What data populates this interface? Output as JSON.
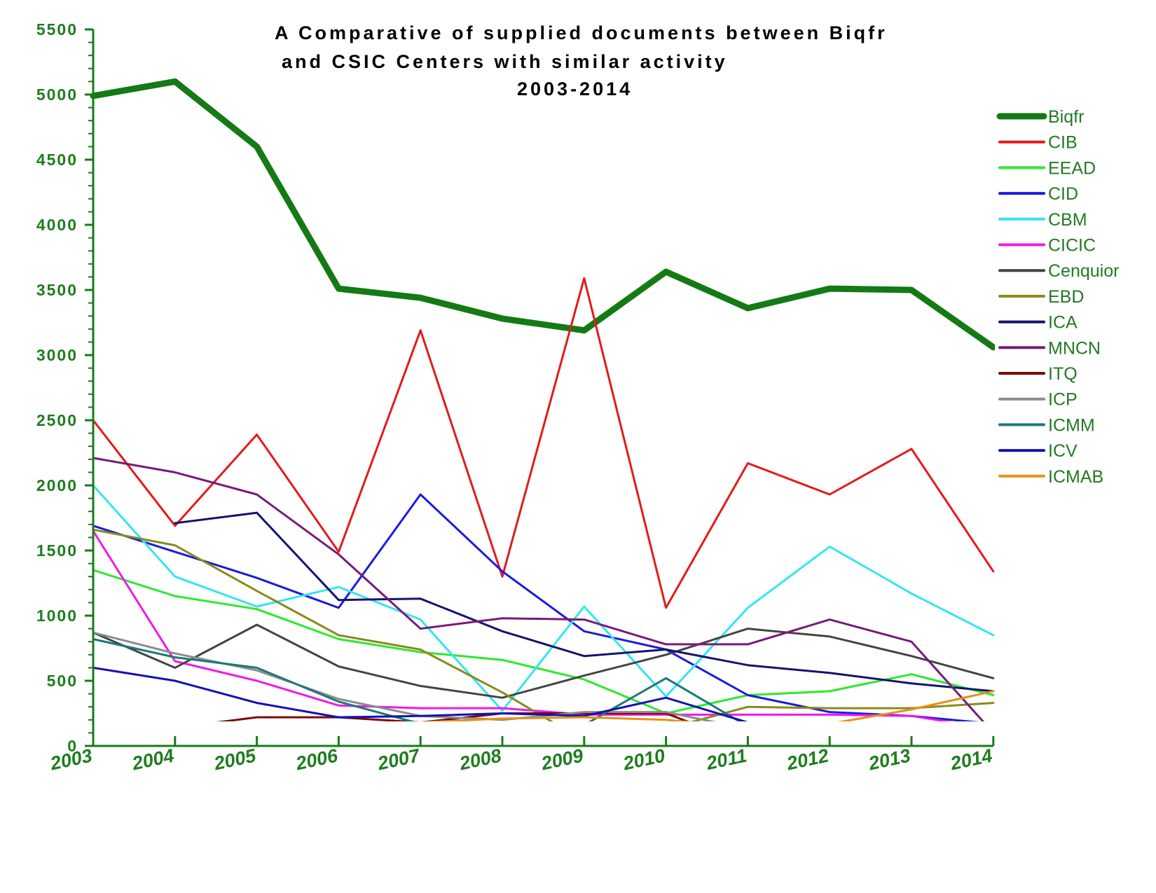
{
  "colors": {
    "axis": "#1a7a1a",
    "title": "#1f7a1f",
    "tick_label": "#1e7d1e",
    "legend_label": "#227a22"
  },
  "chart_data": {
    "type": "line",
    "title_lines": [
      "A Comparative of supplied documents between Biqfr",
      "and CSIC Centers with similar activity",
      "2003-2014"
    ],
    "xlabel": "",
    "ylabel": "",
    "categories": [
      "2003",
      "2004",
      "2005",
      "2006",
      "2007",
      "2008",
      "2009",
      "2010",
      "2011",
      "2012",
      "2013",
      "2014"
    ],
    "y_ticks": [
      0,
      500,
      1000,
      1500,
      2000,
      2500,
      3000,
      3500,
      4000,
      4500,
      5000,
      5500
    ],
    "ylim": [
      0,
      5500
    ],
    "grid": false,
    "legend_position": "right",
    "series": [
      {
        "name": "Biqfr",
        "color": "#147a14",
        "width": 9,
        "values": [
          4990,
          5100,
          4600,
          3510,
          3440,
          3280,
          3190,
          3640,
          3360,
          3510,
          3500,
          3060
        ]
      },
      {
        "name": "CIB",
        "color": "#e31a1a",
        "width": 3,
        "values": [
          2500,
          1690,
          2390,
          1490,
          3190,
          1300,
          3590,
          1060,
          2170,
          1930,
          2280,
          1340
        ]
      },
      {
        "name": "EEAD",
        "color": "#2ee82e",
        "width": 3,
        "values": [
          1350,
          1150,
          1050,
          820,
          720,
          660,
          510,
          250,
          390,
          420,
          550,
          390
        ]
      },
      {
        "name": "CID",
        "color": "#1a1ae0",
        "width": 3,
        "values": [
          1690,
          1490,
          1290,
          1060,
          1930,
          1340,
          880,
          740,
          390,
          260,
          230,
          170
        ]
      },
      {
        "name": "CBM",
        "color": "#33e6f0",
        "width": 3,
        "values": [
          2000,
          1300,
          1070,
          1220,
          970,
          270,
          1070,
          380,
          1060,
          1530,
          1170,
          850
        ]
      },
      {
        "name": "CICIC",
        "color": "#f01ae6",
        "width": 3,
        "values": [
          1650,
          650,
          500,
          310,
          290,
          290,
          240,
          240,
          240,
          240,
          230,
          130
        ]
      },
      {
        "name": "Cenquior",
        "color": "#444444",
        "width": 3,
        "values": [
          870,
          600,
          930,
          610,
          460,
          370,
          540,
          700,
          900,
          840,
          690,
          520
        ]
      },
      {
        "name": "EBD",
        "color": "#8a8a1a",
        "width": 3,
        "values": [
          1660,
          1540,
          1190,
          850,
          740,
          410,
          40,
          130,
          300,
          290,
          290,
          330
        ]
      },
      {
        "name": "ICA",
        "color": "#14146e",
        "width": 3,
        "values": [
          null,
          1710,
          1790,
          1120,
          1130,
          880,
          690,
          740,
          620,
          560,
          480,
          420
        ]
      },
      {
        "name": "MNCN",
        "color": "#7a1a7a",
        "width": 3,
        "values": [
          2210,
          2100,
          1930,
          1470,
          900,
          980,
          970,
          780,
          780,
          970,
          800,
          100
        ]
      },
      {
        "name": "ITQ",
        "color": "#7a0a0a",
        "width": 3,
        "values": [
          110,
          140,
          220,
          220,
          180,
          250,
          250,
          250,
          10,
          20,
          10,
          5
        ]
      },
      {
        "name": "ICP",
        "color": "#8c8c8c",
        "width": 3,
        "values": [
          870,
          710,
          580,
          360,
          230,
          200,
          260,
          260,
          130,
          150,
          90,
          80
        ]
      },
      {
        "name": "ICMM",
        "color": "#1a7a7a",
        "width": 3,
        "values": [
          820,
          680,
          600,
          340,
          170,
          160,
          160,
          520,
          150,
          150,
          110,
          5
        ]
      },
      {
        "name": "ICV",
        "color": "#1212b4",
        "width": 3,
        "values": [
          600,
          500,
          330,
          220,
          230,
          250,
          230,
          370,
          180,
          180,
          90,
          90
        ]
      },
      {
        "name": "ICMAB",
        "color": "#e6901a",
        "width": 3,
        "values": [
          140,
          140,
          120,
          100,
          180,
          210,
          220,
          200,
          140,
          170,
          280,
          420
        ]
      }
    ]
  }
}
